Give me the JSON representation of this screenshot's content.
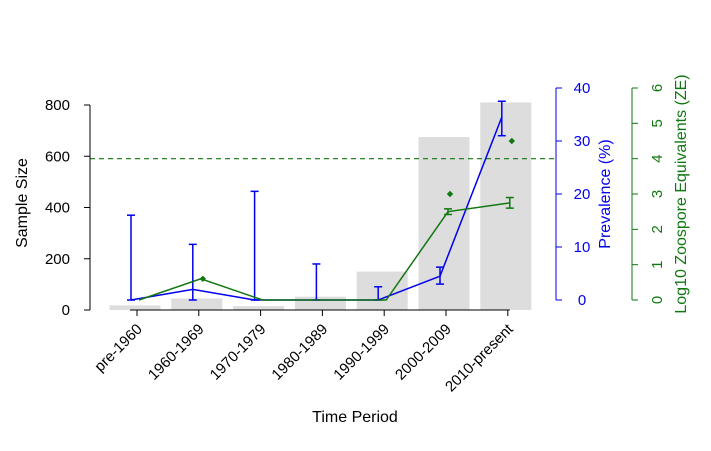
{
  "chart_data": {
    "type": "bar",
    "xlabel": "Time Period",
    "ylabel_left": "Sample Size",
    "ylabel_right1": "Prevalence (%)",
    "ylabel_right2": "Log10 Zoospore Equivalents (ZE)",
    "categories": [
      "pre-1960",
      "1960-1969",
      "1970-1979",
      "1980-1989",
      "1990-1999",
      "2000-2009",
      "2010-present"
    ],
    "sample_size": {
      "axis": "left",
      "ylim": [
        0,
        800
      ],
      "ticks": [
        "0",
        "200",
        "400",
        "600",
        "800"
      ],
      "values": [
        18,
        45,
        15,
        52,
        150,
        675,
        810
      ],
      "color": "#dddddd"
    },
    "prevalence": {
      "axis": "right1",
      "ylim": [
        0,
        40
      ],
      "ticks": [
        "0",
        "10",
        "20",
        "30",
        "40"
      ],
      "values": [
        0,
        2,
        0,
        0,
        0,
        4.5,
        34.5
      ],
      "error_low": [
        0,
        0,
        0,
        0,
        0,
        3,
        31
      ],
      "error_high": [
        16,
        10.5,
        20.5,
        6.8,
        2.5,
        6.2,
        37.5
      ],
      "color": "#0000ee"
    },
    "zoospore": {
      "axis": "right2",
      "ylim": [
        0,
        6
      ],
      "ticks": [
        "0",
        "1",
        "2",
        "3",
        "4",
        "5",
        "6"
      ],
      "line_values": [
        0,
        0.6,
        0,
        0,
        0,
        2.5,
        2.75
      ],
      "line_error_low": [
        null,
        null,
        null,
        null,
        null,
        2.42,
        2.6
      ],
      "line_error_high": [
        null,
        null,
        null,
        null,
        null,
        2.58,
        2.9
      ],
      "point_values": [
        null,
        0.6,
        null,
        null,
        null,
        3,
        4.5
      ],
      "color": "#117711"
    },
    "reference_line": {
      "axis": "right2",
      "value": 4,
      "style": "dashed",
      "color": "#117711"
    },
    "grid": false
  }
}
